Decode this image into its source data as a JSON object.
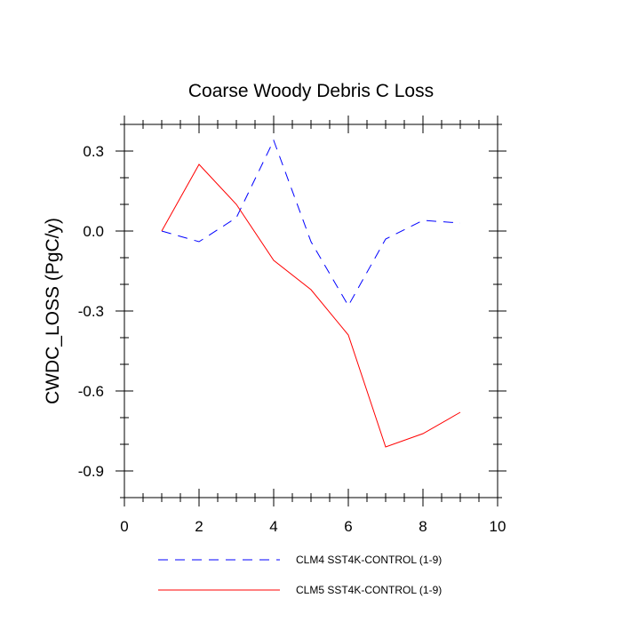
{
  "chart_data": {
    "type": "line",
    "title": "Coarse Woody Debris C Loss",
    "xlabel": "",
    "ylabel": "CWDC_LOSS  (PgC/y)",
    "xlim": [
      0,
      10
    ],
    "ylim": [
      -1.0,
      0.4
    ],
    "x_ticks": [
      0,
      2,
      4,
      6,
      8,
      10
    ],
    "x_tick_labels": [
      "0",
      "2",
      "4",
      "6",
      "8",
      "10"
    ],
    "y_ticks": [
      0.3,
      0.0,
      -0.3,
      -0.6,
      -0.9
    ],
    "y_tick_labels": [
      "0.3",
      "0.0",
      "-0.3",
      "-0.6",
      "-0.9"
    ],
    "grid": false,
    "legend_position": "bottom",
    "series": [
      {
        "name": "CLM4 SST4K-CONTROL (1-9)",
        "color": "#0000ff",
        "dashed": true,
        "x": [
          1,
          2,
          3,
          4,
          5,
          6,
          7,
          8,
          9
        ],
        "values": [
          0.0,
          -0.04,
          0.05,
          0.34,
          -0.04,
          -0.28,
          -0.03,
          0.04,
          0.03
        ]
      },
      {
        "name": "CLM5 SST4K-CONTROL (1-9)",
        "color": "#ff0000",
        "dashed": false,
        "x": [
          1,
          2,
          3,
          4,
          5,
          6,
          7,
          8,
          9
        ],
        "values": [
          0.0,
          0.25,
          0.1,
          -0.11,
          -0.22,
          -0.39,
          -0.81,
          -0.76,
          -0.68
        ]
      }
    ]
  }
}
